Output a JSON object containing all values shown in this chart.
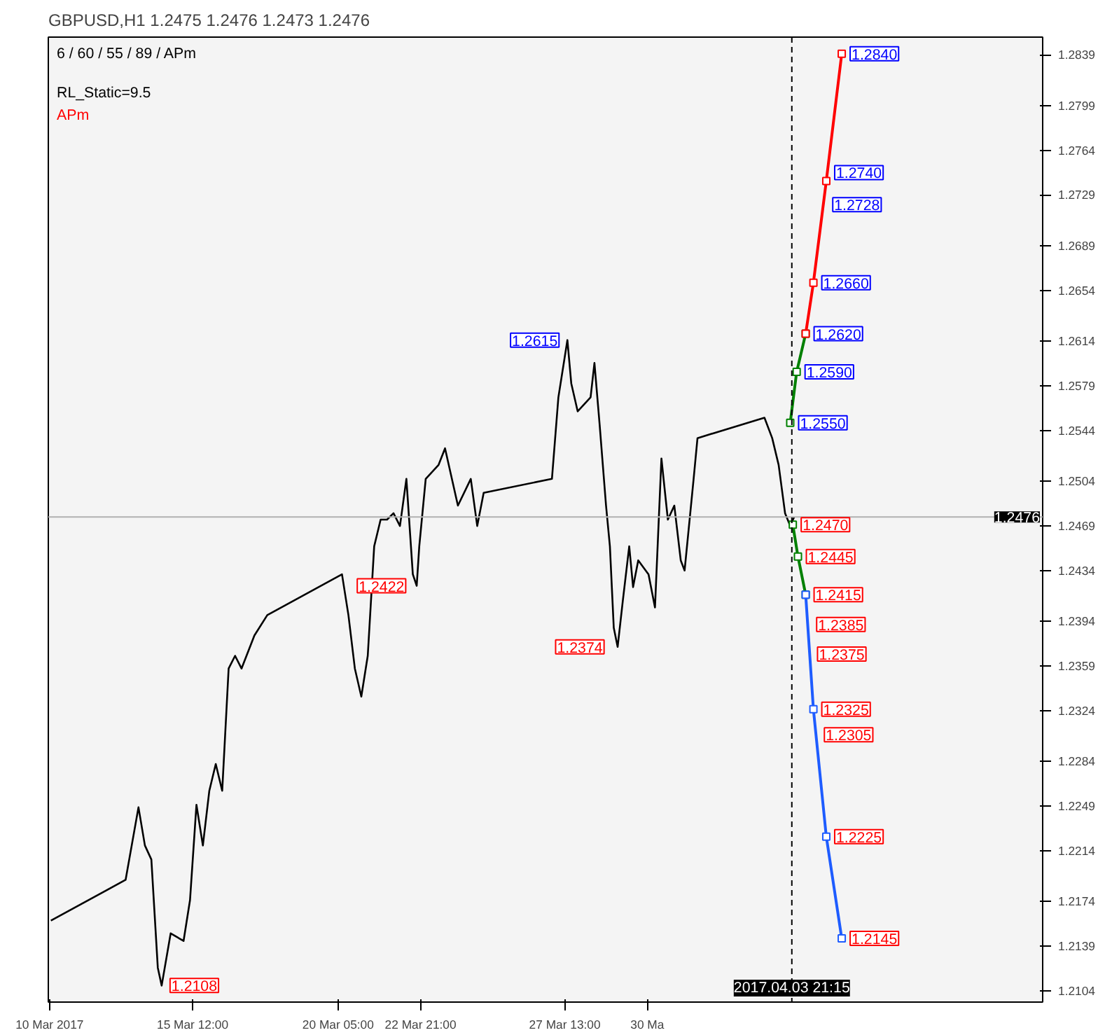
{
  "chart_data": {
    "type": "line",
    "title": "GBPUSD,H1  1.2475 1.2476 1.2473 1.2476",
    "xlim": [
      "2017-03-10T20:00",
      "2017-04-12T00:00"
    ],
    "ylim": [
      1.2095,
      1.2853
    ],
    "xticks": [
      {
        "value": "2017-03-10T21:00",
        "label": "10 Mar 2017"
      },
      {
        "value": "2017-03-15T12:00",
        "label": "15 Mar 12:00"
      },
      {
        "value": "2017-03-20T05:00",
        "label": "20 Mar 05:00"
      },
      {
        "value": "2017-03-22T21:00",
        "label": "22 Mar 21:00"
      },
      {
        "value": "2017-03-27T13:00",
        "label": "27 Mar 13:00"
      },
      {
        "value": "2017-03-30T05:00",
        "label": "30 Ma"
      }
    ],
    "yticks": [
      1.2104,
      1.2139,
      1.2174,
      1.2214,
      1.2249,
      1.2284,
      1.2324,
      1.2359,
      1.2394,
      1.2434,
      1.2469,
      1.2504,
      1.2544,
      1.2579,
      1.2614,
      1.2654,
      1.2689,
      1.2729,
      1.2764,
      1.2799,
      1.2839
    ],
    "grid": false,
    "series": [
      {
        "color": "#000000",
        "x": [
          "2017-03-10T22:00",
          "2017-03-13T08:00",
          "2017-03-13T18:00",
          "2017-03-13T23:00",
          "2017-03-14T04:00",
          "2017-03-14T09:00",
          "2017-03-14T12:00",
          "2017-03-14T19:00",
          "2017-03-15T05:00",
          "2017-03-15T10:00",
          "2017-03-15T15:00",
          "2017-03-15T20:00",
          "2017-03-16T01:00",
          "2017-03-16T06:00",
          "2017-03-16T11:00",
          "2017-03-16T16:00",
          "2017-03-16T21:00",
          "2017-03-17T02:00",
          "2017-03-17T12:00",
          "2017-03-17T22:00",
          "2017-03-20T08:00",
          "2017-03-20T13:00",
          "2017-03-20T18:00",
          "2017-03-20T23:00",
          "2017-03-21T04:00",
          "2017-03-21T09:00",
          "2017-03-21T14:00",
          "2017-03-21T19:00",
          "2017-03-22T00:00",
          "2017-03-22T05:00",
          "2017-03-22T10:00",
          "2017-03-22T15:00",
          "2017-03-22T18:00",
          "2017-03-22T20:00",
          "2017-03-23T01:00",
          "2017-03-23T11:00",
          "2017-03-23T16:00",
          "2017-03-24T02:00",
          "2017-03-24T12:00",
          "2017-03-24T17:00",
          "2017-03-24T22:00",
          "2017-03-27T03:00",
          "2017-03-27T08:00",
          "2017-03-27T15:00",
          "2017-03-27T18:00",
          "2017-03-27T23:00",
          "2017-03-28T09:00",
          "2017-03-28T12:00",
          "2017-03-28T16:00",
          "2017-03-28T21:00",
          "2017-03-29T00:00",
          "2017-03-29T03:00",
          "2017-03-29T06:00",
          "2017-03-29T10:00",
          "2017-03-29T15:00",
          "2017-03-29T18:00",
          "2017-03-29T22:00",
          "2017-03-30T06:00",
          "2017-03-30T11:00",
          "2017-03-30T16:00",
          "2017-03-30T21:00",
          "2017-03-31T02:00",
          "2017-03-31T07:00",
          "2017-03-31T10:00",
          "2017-03-31T17:00",
          "2017-03-31T20:00",
          "2017-04-03T00:00",
          "2017-04-03T06:00",
          "2017-04-03T11:00",
          "2017-04-03T16:00",
          "2017-04-03T20:00",
          "2017-04-03T23:00"
        ],
        "values": [
          1.2159,
          1.2191,
          1.2248,
          1.2218,
          1.2207,
          1.2122,
          1.2108,
          1.2149,
          1.2143,
          1.2175,
          1.225,
          1.2218,
          1.2261,
          1.2282,
          1.2261,
          1.2357,
          1.2367,
          1.2357,
          1.2383,
          1.2399,
          1.2431,
          1.2399,
          1.2357,
          1.2335,
          1.2367,
          1.2453,
          1.2474,
          1.2474,
          1.2479,
          1.2469,
          1.2506,
          1.2431,
          1.2422,
          1.2453,
          1.2506,
          1.2517,
          1.253,
          1.2485,
          1.2506,
          1.2469,
          1.2495,
          1.2506,
          1.257,
          1.2615,
          1.2581,
          1.2559,
          1.257,
          1.2597,
          1.2549,
          1.2485,
          1.2453,
          1.2389,
          1.2374,
          1.241,
          1.2453,
          1.2421,
          1.2442,
          1.2431,
          1.2405,
          1.2522,
          1.2474,
          1.2485,
          1.2442,
          1.2434,
          1.2506,
          1.2538,
          1.2554,
          1.2538,
          1.2517,
          1.2479,
          1.2469,
          1.2476
        ]
      },
      {
        "color": "#008000",
        "marker": "square",
        "x": [
          "2017-04-03T20:00",
          "2017-04-04T01:00",
          "2017-04-04T08:00"
        ],
        "values": [
          1.255,
          1.259,
          1.262
        ]
      },
      {
        "color": "#ff0000",
        "marker": "square",
        "x": [
          "2017-04-04T08:00",
          "2017-04-04T14:00",
          "2017-04-05T00:00",
          "2017-04-05T12:00"
        ],
        "values": [
          1.262,
          1.266,
          1.274,
          1.284
        ]
      },
      {
        "color": "#008000",
        "marker": "square",
        "x": [
          "2017-04-03T22:00",
          "2017-04-04T02:00",
          "2017-04-04T08:00"
        ],
        "values": [
          1.247,
          1.2445,
          1.2415
        ]
      },
      {
        "color": "#1e5cff",
        "marker": "square",
        "x": [
          "2017-04-04T08:00",
          "2017-04-04T14:00",
          "2017-04-05T00:00",
          "2017-04-05T12:00"
        ],
        "values": [
          1.2415,
          1.2325,
          1.2225,
          1.2145
        ]
      }
    ],
    "ref_lines": [
      {
        "axis": "y",
        "value": 1.2476,
        "label": "1.2476",
        "color": "#b0b0b0",
        "line_style": "solid"
      },
      {
        "axis": "x",
        "value": "2017-04-03T21:15",
        "label": "2017.04.03 21:15",
        "color": "#000000",
        "line_style": "dashed"
      }
    ],
    "annotations": [
      "6 / 60 / 55 / 89 / APm",
      "RL_Static=9.5",
      "APm",
      {
        "text": "1.2840",
        "x": "2017-04-05T12:00",
        "y": 1.284
      },
      {
        "text": "1.2740",
        "x": "2017-04-05T00:00",
        "y": 1.274
      },
      {
        "text": "1.2728",
        "x": "2017-04-04T22:30",
        "y": 1.2728
      },
      {
        "text": "1.2660",
        "x": "2017-04-04T14:00",
        "y": 1.266
      },
      {
        "text": "1.2620",
        "x": "2017-04-04T08:00",
        "y": 1.262
      },
      {
        "text": "1.2590",
        "x": "2017-04-04T01:00",
        "y": 1.259
      },
      {
        "text": "1.2550",
        "x": "2017-04-03T20:00",
        "y": 1.255
      },
      {
        "text": "1.2615",
        "x": "2017-03-27T15:00",
        "y": 1.2615
      },
      {
        "text": "1.2470",
        "x": "2017-04-03T22:00",
        "y": 1.247
      },
      {
        "text": "1.2445",
        "x": "2017-04-04T02:00",
        "y": 1.2445
      },
      {
        "text": "1.2415",
        "x": "2017-04-04T08:00",
        "y": 1.2415
      },
      {
        "text": "1.2385",
        "x": "2017-04-04T10:00",
        "y": 1.2385
      },
      {
        "text": "1.2375",
        "x": "2017-04-04T10:40",
        "y": 1.2375
      },
      {
        "text": "1.2325",
        "x": "2017-04-04T14:00",
        "y": 1.2325
      },
      {
        "text": "1.2305",
        "x": "2017-04-04T16:00",
        "y": 1.2305
      },
      {
        "text": "1.2225",
        "x": "2017-04-05T00:00",
        "y": 1.2225
      },
      {
        "text": "1.2145",
        "x": "2017-04-05T12:00",
        "y": 1.2145
      },
      {
        "text": "1.2422",
        "x": "2017-03-22T16:00",
        "y": 1.2422
      },
      {
        "text": "1.2374",
        "x": "2017-03-29T02:00",
        "y": 1.2374
      },
      {
        "text": "1.2108",
        "x": "2017-03-14T12:00",
        "y": 1.2108
      }
    ]
  }
}
